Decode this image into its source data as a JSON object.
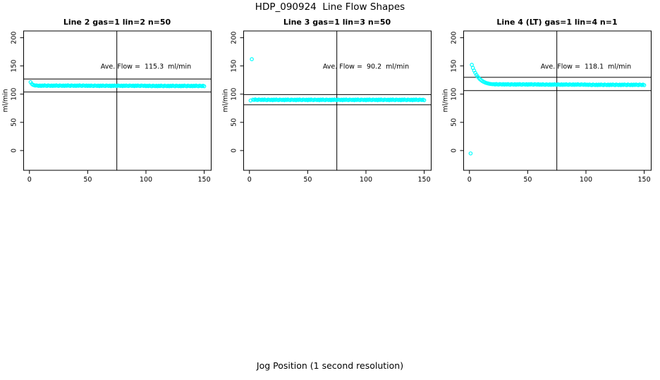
{
  "title": "HDP_090924  Line Flow Shapes",
  "xlabel": "Jog Position (1 second resolution)",
  "colors": {
    "point_color": "#00FFFF",
    "axis_color": "#000000",
    "background": "#FFFFFF"
  },
  "chart_data": {
    "type": "scatter",
    "title": "HDP_090924  Line Flow Shapes",
    "xlabel": "Jog Position (1 second resolution)",
    "ylabel": "ml/min",
    "xlim": [
      -5,
      156
    ],
    "ylim": [
      -35,
      212
    ],
    "x_ticks": [
      0,
      50,
      100,
      150
    ],
    "y_ticks": [
      0,
      50,
      100,
      150,
      200
    ],
    "grid": false,
    "legend": "none",
    "point_style": "open-circle",
    "point_color": "#00FFFF",
    "panels": [
      {
        "title": "Line 2 gas=1 lin=2 n=50",
        "annotation": "Ave. Flow =  115.3  ml/min",
        "ave_flow": 115.3,
        "vline_x": 75,
        "hlines": [
          126.8,
          103.8
        ],
        "x_start": 1,
        "x_step": 1,
        "y": [
          121.3,
          118.2,
          116.6,
          115.8,
          115.2,
          115.6,
          115.1,
          114.6,
          115.5,
          114.4,
          115.4,
          114.7,
          115.7,
          114.9,
          114.5,
          115.6,
          115.1,
          114.6,
          115.5,
          114.4,
          115.4,
          114.7,
          115.7,
          114.9,
          114.5,
          115.6,
          115.1,
          114.6,
          115.5,
          114.4,
          115.4,
          114.7,
          115.7,
          114.9,
          114.5,
          115.6,
          115.1,
          114.6,
          115.5,
          114.4,
          115.4,
          114.7,
          115.7,
          114.9,
          114.5,
          115.6,
          115.1,
          114.6,
          115.5,
          114.4,
          115.2,
          114.5,
          115.5,
          114.7,
          114.3,
          115.4,
          114.9,
          114.4,
          115.3,
          114.2,
          115.2,
          114.5,
          115.5,
          114.7,
          114.3,
          115.4,
          114.9,
          114.4,
          115.3,
          114.2,
          115.2,
          114.5,
          115.5,
          114.7,
          114.3,
          115.4,
          114.9,
          114.4,
          115.3,
          114.2,
          115.2,
          114.5,
          115.5,
          114.7,
          114.3,
          115.4,
          114.9,
          114.4,
          115.3,
          114.2,
          115.2,
          114.5,
          115.5,
          114.7,
          114.3,
          115.4,
          114.9,
          114.4,
          115.3,
          114.2,
          114.9,
          114.2,
          115.2,
          114.4,
          114.0,
          115.1,
          114.6,
          114.1,
          115.0,
          113.9,
          114.9,
          114.2,
          115.2,
          114.4,
          114.0,
          115.1,
          114.6,
          114.1,
          115.0,
          113.9,
          114.9,
          114.2,
          115.2,
          114.4,
          114.0,
          115.1,
          114.6,
          114.1,
          115.0,
          113.9,
          114.9,
          114.2,
          115.2,
          114.4,
          114.0,
          115.1,
          114.6,
          114.1,
          115.0,
          113.9,
          114.9,
          114.2,
          115.2,
          114.4,
          114.0,
          115.1,
          114.6,
          114.1,
          115.0,
          113.9
        ]
      },
      {
        "title": "Line 3 gas=1 lin=3 n=50",
        "annotation": "Ave. Flow =  90.2  ml/min",
        "ave_flow": 90.2,
        "vline_x": 75,
        "hlines": [
          99.2,
          81.2
        ],
        "x_start": 1,
        "x_step": 1,
        "y": [
          88.8,
          162.0,
          90.4,
          89.7,
          90.7,
          89.9,
          89.5,
          90.6,
          90.1,
          89.6,
          90.5,
          89.6,
          90.6,
          89.8,
          89.4,
          90.5,
          90.0,
          89.5,
          90.4,
          89.3,
          90.5,
          89.6,
          90.6,
          89.8,
          89.4,
          90.5,
          90.0,
          89.5,
          90.4,
          89.3,
          90.5,
          89.6,
          90.6,
          89.8,
          89.4,
          90.5,
          90.0,
          89.5,
          90.4,
          89.3,
          90.5,
          89.6,
          90.6,
          89.8,
          89.4,
          90.5,
          90.0,
          89.5,
          90.4,
          89.3,
          90.5,
          89.6,
          90.6,
          89.8,
          89.4,
          90.5,
          90.0,
          89.5,
          90.4,
          89.3,
          90.5,
          89.6,
          90.6,
          89.8,
          89.4,
          90.5,
          90.0,
          89.5,
          90.4,
          89.3,
          90.5,
          89.6,
          90.6,
          89.8,
          89.4,
          90.5,
          90.0,
          89.5,
          90.4,
          89.3,
          90.5,
          89.6,
          90.6,
          89.8,
          89.4,
          90.5,
          90.0,
          89.5,
          90.4,
          89.3,
          90.5,
          89.6,
          90.6,
          89.8,
          89.4,
          90.5,
          90.0,
          89.5,
          90.4,
          89.3,
          90.5,
          89.6,
          90.6,
          89.8,
          89.4,
          90.5,
          90.0,
          89.5,
          90.4,
          89.3,
          90.5,
          89.6,
          90.6,
          89.8,
          89.4,
          90.5,
          90.0,
          89.5,
          90.4,
          89.3,
          90.5,
          89.6,
          90.6,
          89.8,
          89.4,
          90.5,
          90.0,
          89.5,
          90.4,
          89.3,
          90.5,
          89.6,
          90.6,
          89.8,
          89.4,
          90.5,
          90.0,
          89.5,
          90.4,
          89.3,
          90.5,
          89.6,
          90.6,
          89.8,
          89.4,
          90.5,
          90.0,
          89.5,
          90.4,
          89.3
        ]
      },
      {
        "title": "Line 4 (LT) gas=1 lin=4 n=1",
        "annotation": "Ave. Flow =  118.1  ml/min",
        "ave_flow": 118.1,
        "vline_x": 75,
        "hlines": [
          129.9,
          106.3
        ],
        "x_start": 1,
        "x_step": 1,
        "y": [
          -5.0,
          152.0,
          146.5,
          141.8,
          137.8,
          134.3,
          131.3,
          128.8,
          126.6,
          124.8,
          123.3,
          122.0,
          121.0,
          120.1,
          119.4,
          118.9,
          118.4,
          118.1,
          117.8,
          117.6,
          117.8,
          117.1,
          118.1,
          117.3,
          116.9,
          118.0,
          117.5,
          117.0,
          117.9,
          116.8,
          117.6,
          116.9,
          117.9,
          117.1,
          116.7,
          117.8,
          117.3,
          116.8,
          117.7,
          116.6,
          117.6,
          116.9,
          117.9,
          117.1,
          116.7,
          117.8,
          117.3,
          116.8,
          117.7,
          116.6,
          117.6,
          116.9,
          117.9,
          117.1,
          116.7,
          117.8,
          117.3,
          116.8,
          117.7,
          116.6,
          117.3,
          116.6,
          117.6,
          116.8,
          116.4,
          117.5,
          117.0,
          116.5,
          117.4,
          116.3,
          117.3,
          116.6,
          117.6,
          116.8,
          116.4,
          117.5,
          117.0,
          116.5,
          117.4,
          116.3,
          117.3,
          116.6,
          117.6,
          116.8,
          116.4,
          117.5,
          117.0,
          116.5,
          117.4,
          116.3,
          117.3,
          116.6,
          117.6,
          116.8,
          116.4,
          117.5,
          117.0,
          116.5,
          117.4,
          116.3,
          116.9,
          116.2,
          117.2,
          116.4,
          116.0,
          117.1,
          116.6,
          116.1,
          117.0,
          115.9,
          116.9,
          116.2,
          117.2,
          116.4,
          116.0,
          117.1,
          116.6,
          116.1,
          117.0,
          115.9,
          116.9,
          116.2,
          117.2,
          116.4,
          116.0,
          117.1,
          116.6,
          116.1,
          117.0,
          115.9,
          116.9,
          116.2,
          117.2,
          116.4,
          116.0,
          117.1,
          116.6,
          116.1,
          117.0,
          115.9,
          116.9,
          116.2,
          117.2,
          116.4,
          116.0,
          117.1,
          116.6,
          116.1,
          117.0,
          115.9
        ]
      }
    ]
  }
}
